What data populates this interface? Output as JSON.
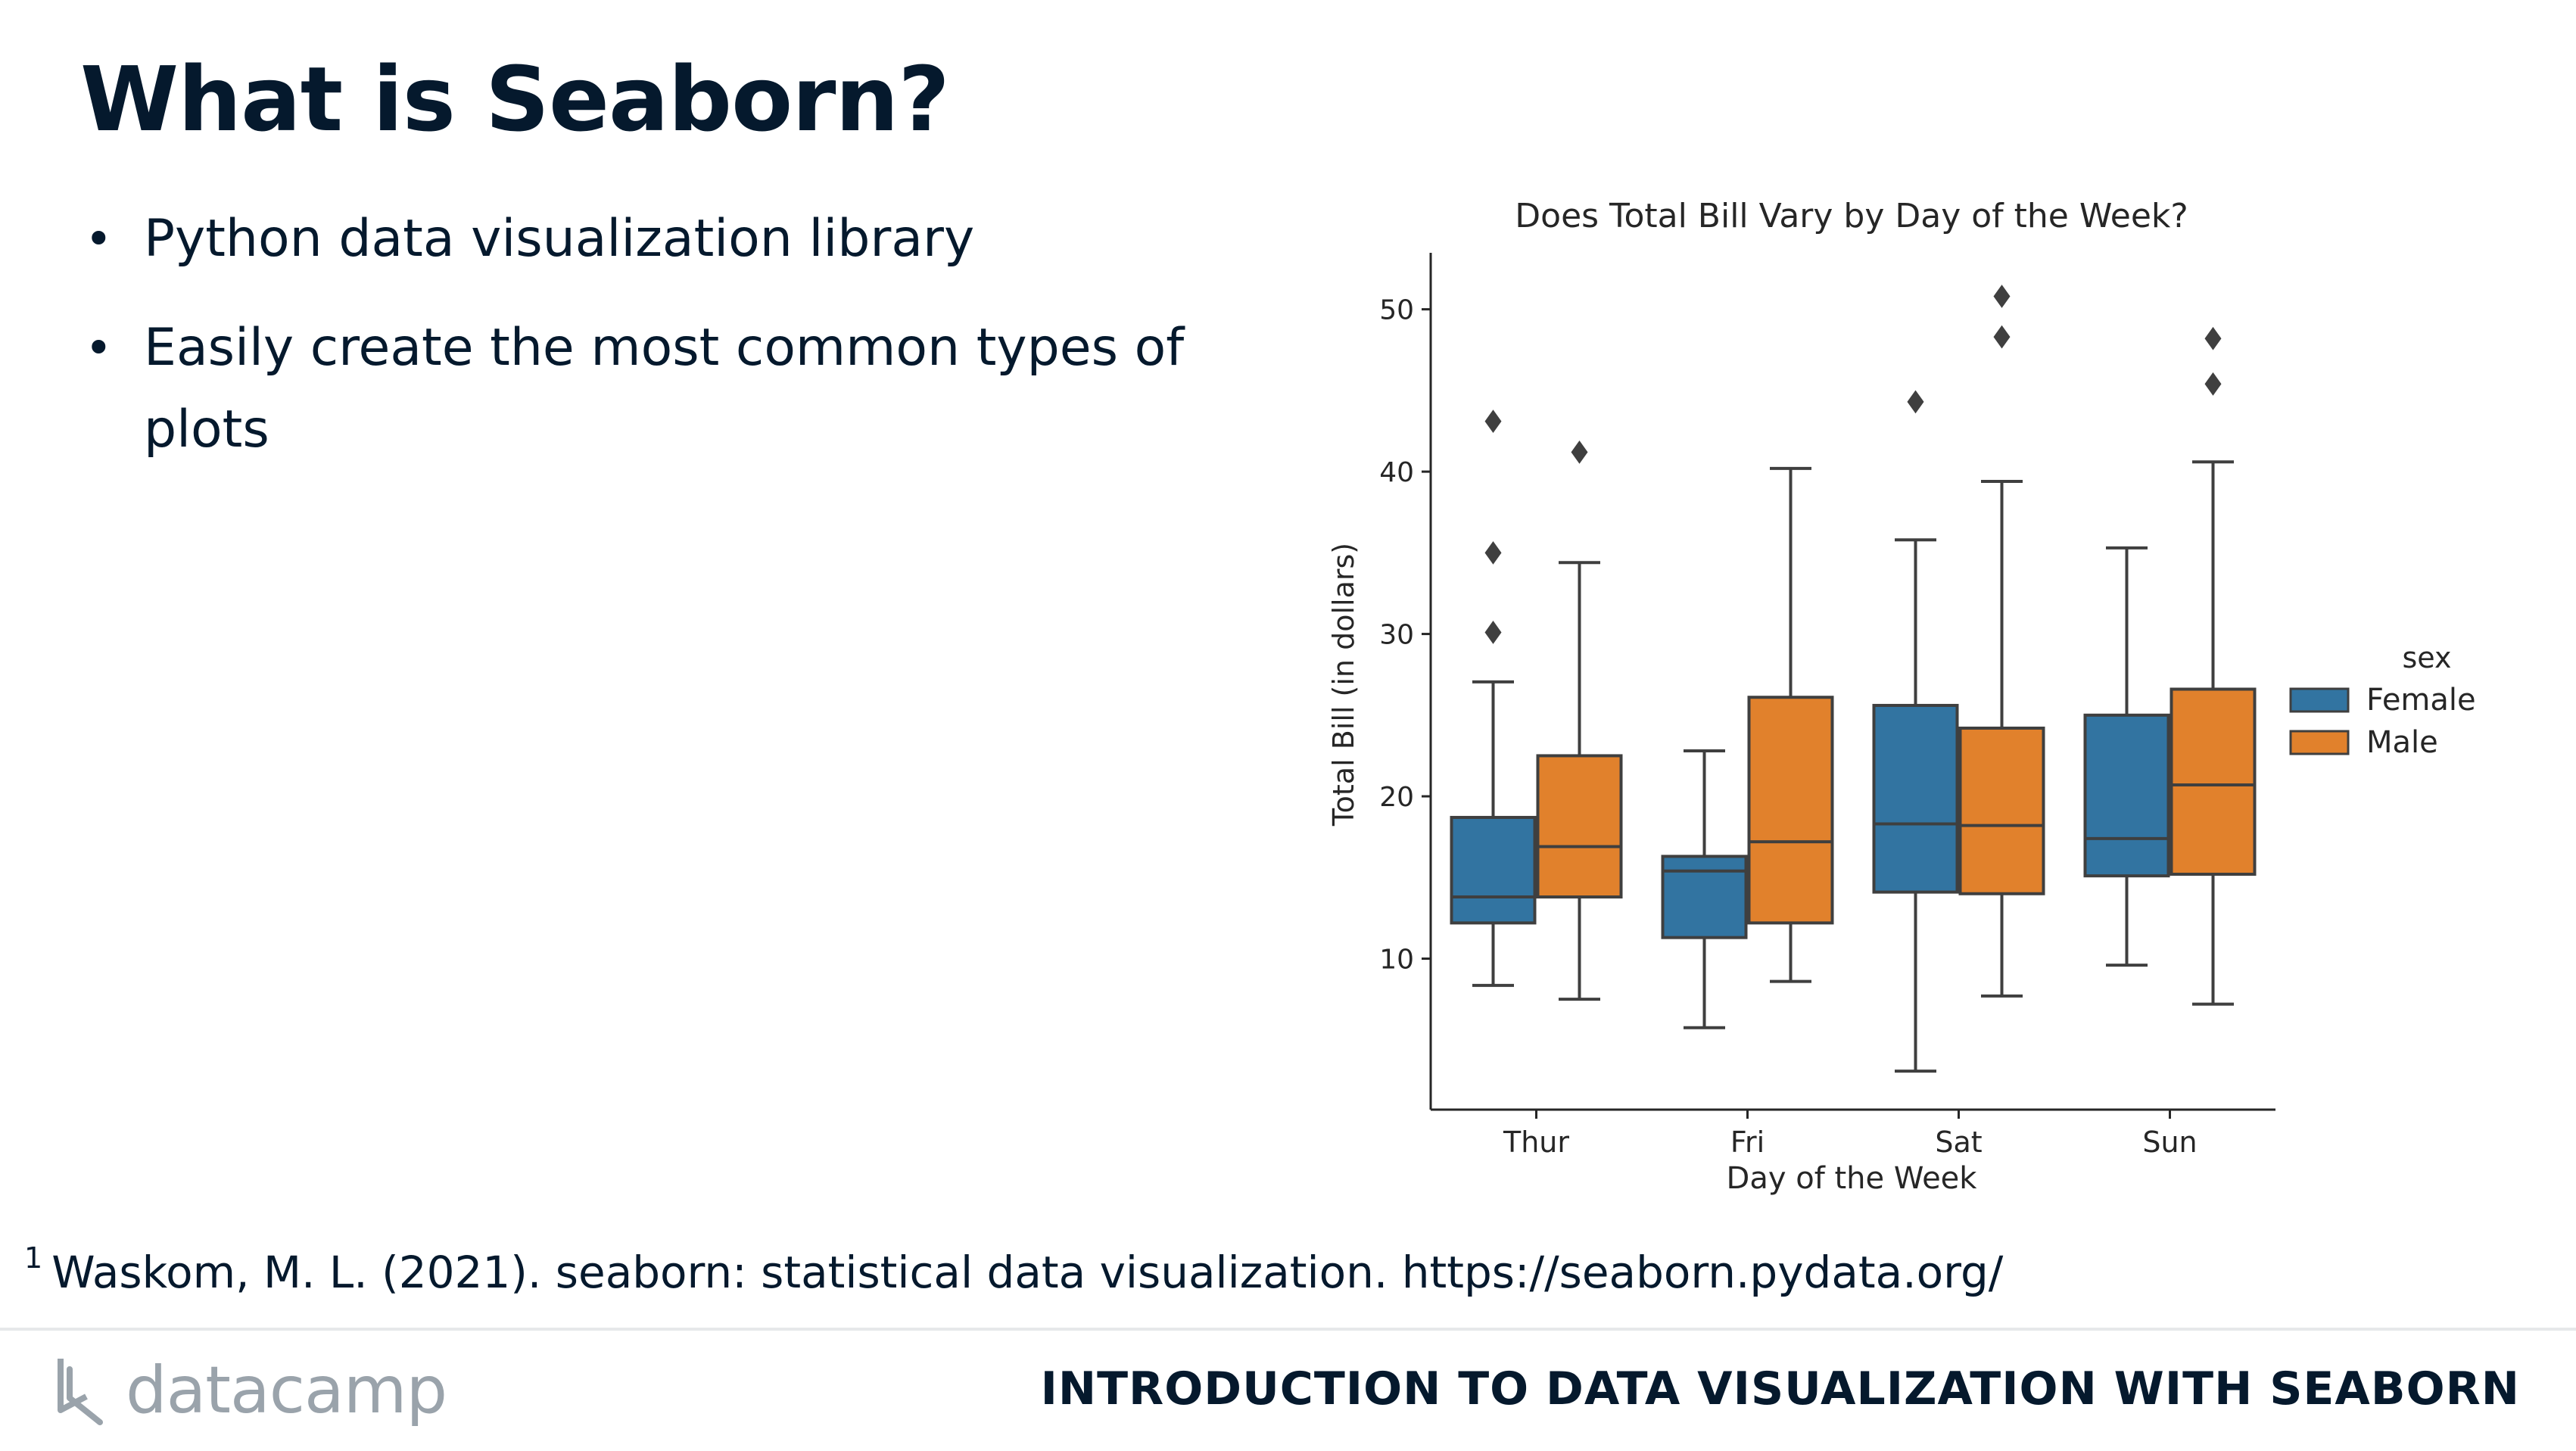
{
  "slide": {
    "title": "What is Seaborn?",
    "bullets": [
      "Python data visualization library",
      "Easily create the most common types of plots"
    ]
  },
  "footnote": {
    "marker": "1",
    "text": "Waskom, M. L. (2021). seaborn: statistical data visualization. https://seaborn.pydata.org/"
  },
  "footer": {
    "logo_text": "datacamp",
    "logo_icon": "datacamp-logo-icon",
    "course_title": "INTRODUCTION TO DATA VISUALIZATION WITH SEABORN"
  },
  "colors": {
    "female": "#3274a1",
    "male": "#e1812c",
    "text": "#05192d",
    "box_line": "#3f3f3f"
  },
  "chart_data": {
    "type": "box",
    "title": "Does Total Bill Vary by Day of the Week?",
    "xlabel": "Day of the Week",
    "ylabel": "Total Bill (in dollars)",
    "categories": [
      "Thur",
      "Fri",
      "Sat",
      "Sun"
    ],
    "ylim": [
      0.7,
      53.2
    ],
    "yticks": [
      10,
      20,
      30,
      40,
      50
    ],
    "grid": false,
    "legend": {
      "title": "sex",
      "placement": "right"
    },
    "series": [
      {
        "name": "Female",
        "color": "#3274a1",
        "boxes": [
          {
            "min": 8.35,
            "q1": 12.2,
            "median": 13.8,
            "q3": 18.7,
            "max": 27.05,
            "outliers": [
              30.1,
              35.0,
              43.1
            ]
          },
          {
            "min": 5.75,
            "q1": 11.3,
            "median": 15.4,
            "q3": 16.3,
            "max": 22.8,
            "outliers": []
          },
          {
            "min": 3.07,
            "q1": 14.1,
            "median": 18.3,
            "q3": 25.6,
            "max": 35.8,
            "outliers": [
              44.3
            ]
          },
          {
            "min": 9.6,
            "q1": 15.1,
            "median": 17.4,
            "q3": 25.0,
            "max": 35.3,
            "outliers": []
          }
        ]
      },
      {
        "name": "Male",
        "color": "#e1812c",
        "boxes": [
          {
            "min": 7.5,
            "q1": 13.8,
            "median": 16.9,
            "q3": 22.5,
            "max": 34.4,
            "outliers": [
              41.2
            ]
          },
          {
            "min": 8.6,
            "q1": 12.2,
            "median": 17.2,
            "q3": 26.1,
            "max": 40.2,
            "outliers": []
          },
          {
            "min": 7.7,
            "q1": 14.0,
            "median": 18.2,
            "q3": 24.2,
            "max": 39.4,
            "outliers": [
              48.3,
              50.8
            ]
          },
          {
            "min": 7.2,
            "q1": 15.2,
            "median": 20.7,
            "q3": 26.6,
            "max": 40.6,
            "outliers": [
              45.4,
              48.2
            ]
          }
        ]
      }
    ]
  }
}
